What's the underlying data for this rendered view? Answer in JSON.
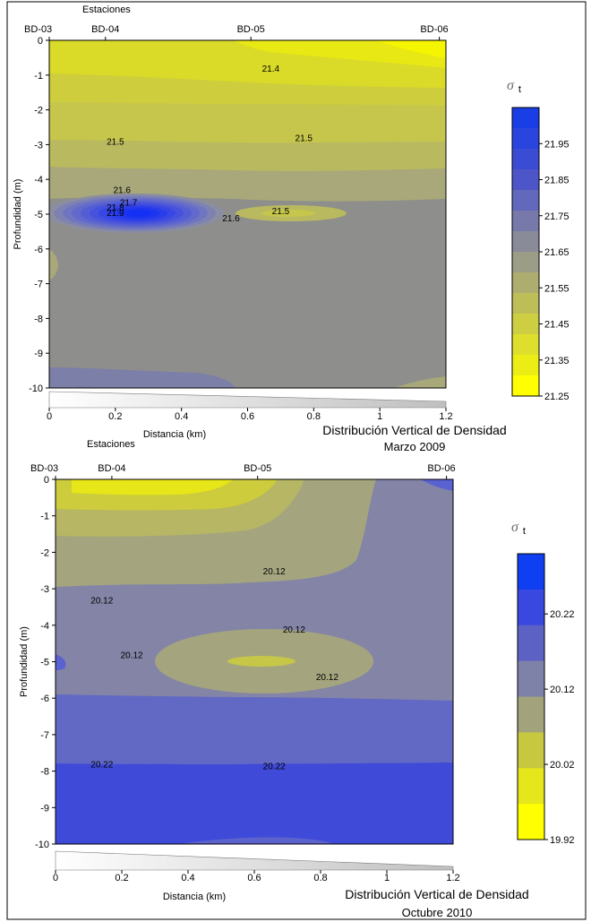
{
  "chart_data": [
    {
      "type": "contour",
      "title": "Distribución Vertical de Densidad",
      "subtitle": "Marzo 2009",
      "xlabel": "Distancia (km)",
      "ylabel": "Profundidad (m)",
      "top_axis_label": "Estaciones",
      "stations": [
        {
          "name": "BD-03",
          "x": 0
        },
        {
          "name": "BD-04",
          "x": 0.17
        },
        {
          "name": "BD-05",
          "x": 0.61
        },
        {
          "name": "BD-06",
          "x": 1.18
        }
      ],
      "xlim": [
        0,
        1.2
      ],
      "ylim": [
        -10,
        0
      ],
      "x_ticks": [
        "0",
        "0.2",
        "0.4",
        "0.6",
        "0.8",
        "1",
        "1.2"
      ],
      "y_ticks": [
        "0",
        "-1",
        "-2",
        "-3",
        "-4",
        "-5",
        "-6",
        "-7",
        "-8",
        "-9",
        "-10"
      ],
      "colorbar": {
        "symbol": "σ",
        "subscript": "t",
        "min": 21.25,
        "max": 22.05,
        "step": 0.05,
        "labels": [
          "21.95",
          "21.85",
          "21.75",
          "21.65",
          "21.55",
          "21.45",
          "21.35",
          "21.25"
        ]
      },
      "contour_labels": [
        {
          "text": "21.4",
          "x": 0.67,
          "y": -0.9
        },
        {
          "text": "21.5",
          "x": 0.2,
          "y": -3.0
        },
        {
          "text": "21.5",
          "x": 0.77,
          "y": -2.9
        },
        {
          "text": "21.6",
          "x": 0.22,
          "y": -4.4
        },
        {
          "text": "21.7",
          "x": 0.24,
          "y": -4.75
        },
        {
          "text": "21.8",
          "x": 0.2,
          "y": -4.9
        },
        {
          "text": "21.9",
          "x": 0.2,
          "y": -5.05
        },
        {
          "text": "21.6",
          "x": 0.55,
          "y": -5.2
        },
        {
          "text": "21.5",
          "x": 0.7,
          "y": -5.0
        }
      ]
    },
    {
      "type": "contour",
      "title": "Distribución Vertical de Densidad",
      "subtitle": "Octubre 2010",
      "xlabel": "Distancia (km)",
      "ylabel": "Profundidad (m)",
      "top_axis_label": "Estaciones",
      "stations": [
        {
          "name": "BD-03",
          "x": 0
        },
        {
          "name": "BD-04",
          "x": 0.17
        },
        {
          "name": "BD-05",
          "x": 0.61
        },
        {
          "name": "BD-06",
          "x": 1.18
        }
      ],
      "xlim": [
        0,
        1.2
      ],
      "ylim": [
        -10,
        0
      ],
      "x_ticks": [
        "0",
        "0.2",
        "0.4",
        "0.6",
        "0.8",
        "1",
        "1.2"
      ],
      "y_ticks": [
        "0",
        "-1",
        "-2",
        "-3",
        "-4",
        "-5",
        "-6",
        "-7",
        "-8",
        "-9",
        "-10"
      ],
      "colorbar": {
        "symbol": "σ",
        "subscript": "t",
        "min": 19.92,
        "max": 20.3,
        "step": 0.05,
        "labels": [
          "20.22",
          "20.12",
          "20.02",
          "19.92"
        ]
      },
      "contour_labels": [
        {
          "text": "20.12",
          "x": 0.66,
          "y": -2.6
        },
        {
          "text": "20.12",
          "x": 0.14,
          "y": -3.4
        },
        {
          "text": "20.12",
          "x": 0.23,
          "y": -4.9
        },
        {
          "text": "20.12",
          "x": 0.72,
          "y": -4.2
        },
        {
          "text": "20.12",
          "x": 0.82,
          "y": -5.5
        },
        {
          "text": "20.22",
          "x": 0.14,
          "y": -7.9
        },
        {
          "text": "20.22",
          "x": 0.66,
          "y": -7.95
        }
      ]
    }
  ]
}
